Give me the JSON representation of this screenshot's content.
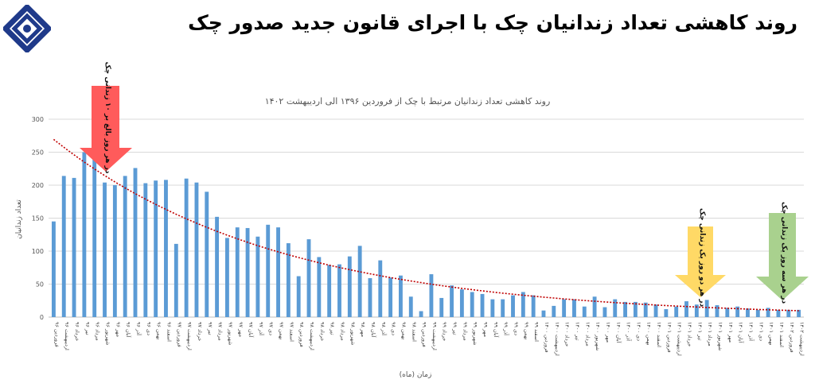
{
  "slide": {
    "title": "روند کاهشی تعداد زندانیان چک با اجرای قانون جدید صدور چک"
  },
  "logo": {
    "icon": "central-bank-logo-icon"
  },
  "colors": {
    "bar": "#5b9bd5",
    "trend": "#c00000",
    "grid": "#d9d9d9",
    "red_arrow": "#ff5b5b",
    "yellow_arrow": "#ffd966",
    "green_arrow": "#a9d18e"
  },
  "chart_data": {
    "type": "bar",
    "title": "روند کاهشی تعداد زندانیان مرتبط با چک از فروردین ۱۳۹۶ الی اردیبهشت ۱۴۰۲",
    "xlabel": "زمان (ماه)",
    "ylabel": "تعداد زندانیان",
    "ylim": [
      0,
      300
    ],
    "yticks": [
      0,
      50,
      100,
      150,
      200,
      250,
      300
    ],
    "grid": true,
    "trendline": "exponential",
    "categories": [
      "فروردین ۹۶",
      "اردیبهشت ۹۶",
      "خرداد ۹۶",
      "تیر ۹۶",
      "مرداد ۹۶",
      "شهریور ۹۶",
      "مهر ۹۶",
      "آبان ۹۶",
      "آذر ۹۶",
      "دی ۹۶",
      "بهمن ۹۶",
      "اسفند ۹۶",
      "فروردین ۹۷",
      "اردیبهشت ۹۷",
      "خرداد ۹۷",
      "تیر ۹۷",
      "مرداد ۹۷",
      "شهریور ۹۷",
      "مهر ۹۷",
      "آبان ۹۷",
      "آذر ۹۷",
      "دی ۹۷",
      "بهمن ۹۷",
      "اسفند ۹۷",
      "فروردین ۹۸",
      "اردیبهشت ۹۸",
      "خرداد ۹۸",
      "تیر ۹۸",
      "مرداد ۹۸",
      "شهریور ۹۸",
      "مهر ۹۸",
      "آبان ۹۸",
      "آذر ۹۸",
      "دی ۹۸",
      "بهمن ۹۸",
      "اسفند ۹۸",
      "فروردین ۹۹",
      "اردیبهشت ۹۹",
      "خرداد ۹۹",
      "تیر ۹۹",
      "مرداد ۹۹",
      "شهریور ۹۹",
      "مهر ۹۹",
      "آبان ۹۹",
      "آذر ۹۹",
      "دی ۹۹",
      "بهمن ۹۹",
      "اسفند ۹۹",
      "فروردین ۱۴۰۰",
      "اردیبهشت ۱۴۰۰",
      "خرداد ۱۴۰۰",
      "تیر ۱۴۰۰",
      "مرداد ۱۴۰۰",
      "شهریور ۱۴۰۰",
      "مهر ۱۴۰۰",
      "آبان ۱۴۰۰",
      "آذر ۱۴۰۰",
      "دی ۱۴۰۰",
      "بهمن ۱۴۰۰",
      "اسفند ۱۴۰۰",
      "فروردین ۱۴۰۱",
      "اردیبهشت ۱۴۰۱",
      "خرداد ۱۴۰۱",
      "تیر ۱۴۰۱",
      "مرداد ۱۴۰۱",
      "شهریور ۱۴۰۱",
      "مهر ۱۴۰۱",
      "آبان ۱۴۰۱",
      "آذر ۱۴۰۱",
      "دی ۱۴۰۱",
      "بهمن ۱۴۰۱",
      "اسفند ۱۴۰۱",
      "فروردین ۱۴۰۲",
      "اردیبهشت ۱۴۰۲"
    ],
    "values": [
      145,
      214,
      211,
      250,
      247,
      204,
      200,
      214,
      226,
      203,
      207,
      208,
      111,
      210,
      204,
      190,
      152,
      120,
      136,
      135,
      122,
      140,
      136,
      112,
      62,
      118,
      91,
      79,
      80,
      92,
      108,
      59,
      86,
      60,
      63,
      31,
      9,
      65,
      29,
      48,
      42,
      38,
      35,
      27,
      27,
      33,
      38,
      33,
      10,
      17,
      27,
      27,
      16,
      31,
      15,
      27,
      23,
      23,
      22,
      19,
      12,
      16,
      24,
      19,
      26,
      18,
      14,
      16,
      13,
      11,
      14,
      11,
      11,
      11
    ],
    "annotations": [
      {
        "color": "red",
        "text": "در هر روز بالغ بر ۱۰ زندانی چک"
      },
      {
        "color": "yellow",
        "text": "در هر دو روز یک زندانی چک"
      },
      {
        "color": "green",
        "text": "در هر سه روز یک زندانی چک"
      }
    ]
  }
}
